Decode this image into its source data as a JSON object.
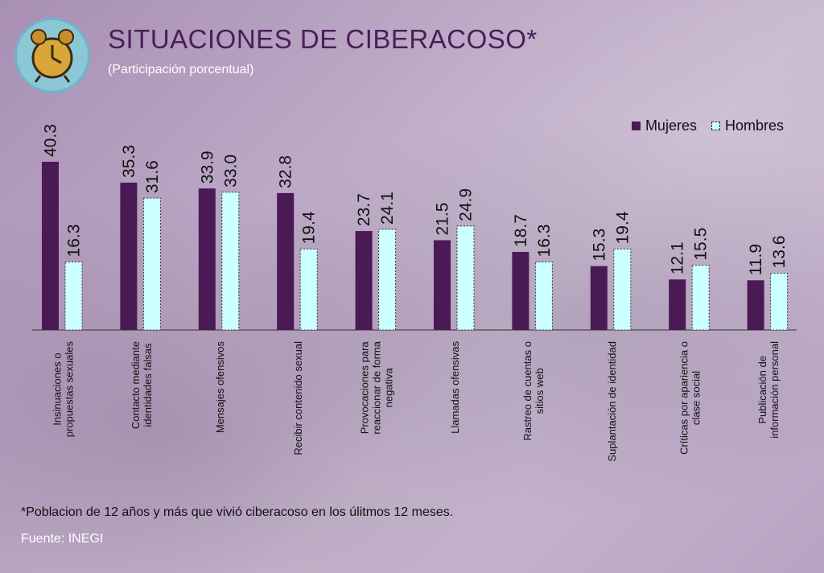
{
  "header": {
    "title": "SITUACIONES DE CIBERACOSO*",
    "subtitle": "(Participación porcentual)"
  },
  "legend": {
    "mujeres": "Mujeres",
    "hombres": "Hombres"
  },
  "colors": {
    "mujeres": "#4a1a55",
    "hombres": "#ccffff"
  },
  "chart_data": {
    "type": "bar",
    "title": "SITUACIONES DE CIBERACOSO*",
    "subtitle": "(Participación porcentual)",
    "ylim": [
      0,
      45
    ],
    "categories": [
      [
        "Insinuaciones o",
        "propuestas sexuales"
      ],
      [
        "Contacto mediante",
        "identidades falsas"
      ],
      [
        "Mensajes ofensivos"
      ],
      [
        "Recibir contenido sexual"
      ],
      [
        "Provocaciones para",
        "reaccionar de forma",
        "negativa"
      ],
      [
        "Llamadas ofensivas"
      ],
      [
        "Rastreo de cuentas o",
        "sitios web"
      ],
      [
        "Suplantación de identidad"
      ],
      [
        "Críticas por apariencia o",
        "clase social"
      ],
      [
        "Publicación de",
        "información personal"
      ]
    ],
    "series": [
      {
        "name": "Mujeres",
        "values": [
          "40.3",
          "35.3",
          "33.9",
          "32.8",
          "23.7",
          "21.5",
          "18.7",
          "15.3",
          "12.1",
          "11.9"
        ]
      },
      {
        "name": "Hombres",
        "values": [
          "16.3",
          "31.6",
          "33.0",
          "19.4",
          "24.1",
          "24.9",
          "16.3",
          "19.4",
          "15.5",
          "13.6"
        ]
      }
    ]
  },
  "footer": {
    "footnote": "*Poblacion de 12 años y más que vivió ciberacoso en los úlitmos 12 meses.",
    "source": "Fuente: INEGI"
  }
}
